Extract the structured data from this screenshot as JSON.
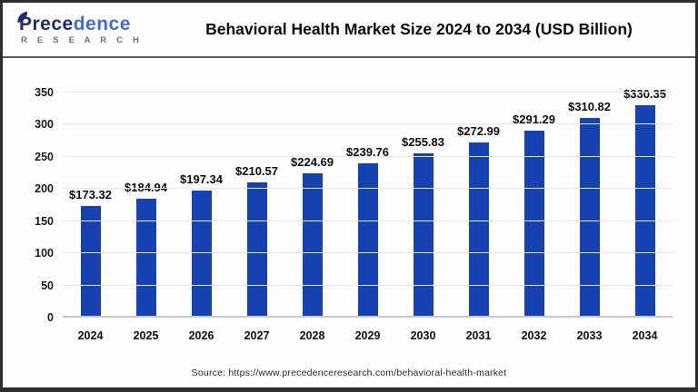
{
  "header": {
    "logo": {
      "word_part1": "Prece",
      "word_part2": "dence",
      "subtext": "R E S E A R C H"
    },
    "title": "Behavioral Health Market Size 2024 to 2034 (USD Billion)"
  },
  "chart_data": {
    "type": "bar",
    "title": "Behavioral Health Market Size 2024 to 2034 (USD Billion)",
    "categories": [
      "2024",
      "2025",
      "2026",
      "2027",
      "2028",
      "2029",
      "2030",
      "2031",
      "2032",
      "2033",
      "2034"
    ],
    "values": [
      173.32,
      184.94,
      197.34,
      210.57,
      224.69,
      239.76,
      255.83,
      272.99,
      291.29,
      310.82,
      330.35
    ],
    "value_labels": [
      "$173.32",
      "$184.94",
      "$197.34",
      "$210.57",
      "$224.69",
      "$239.76",
      "$255.83",
      "$272.99",
      "$291.29",
      "$310.82",
      "$330.35"
    ],
    "xlabel": "",
    "ylabel": "",
    "ylim": [
      0,
      350
    ],
    "yticks": [
      0,
      50,
      100,
      150,
      200,
      250,
      300,
      350
    ],
    "grid": true,
    "legend": false,
    "bar_color": "#1541b2"
  },
  "footer": {
    "source": "Source: https://www.precedenceresearch.com/behavioral-health-market"
  },
  "colors": {
    "bar": "#1541b2",
    "logo_dark": "#1e2d6d",
    "logo_light": "#3c6fd2",
    "divider": "#565b66",
    "frame": "#2e2e2e",
    "gridline": "#e8e8e8",
    "baseline": "#c8c8c8"
  }
}
